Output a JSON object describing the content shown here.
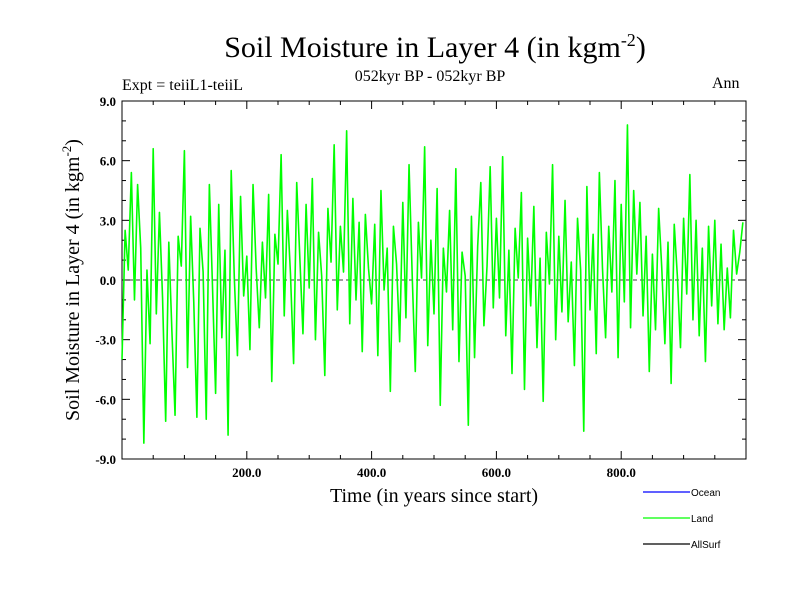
{
  "chart_data": {
    "type": "line",
    "title": "Soil Moisture in Layer 4 (in kgm",
    "title_sup": "-2",
    "title_end": ")",
    "subtitle": "052kyr BP - 052kyr BP",
    "expt_label": "Expt = teiiL1-teiiL",
    "season_label": "Ann",
    "xlabel": "Time (in years since start)",
    "ylabel": "Soil Moisture in Layer 4 (in kgm",
    "ylabel_sup": "-2",
    "ylabel_end": ")",
    "xlim": [
      0,
      1000
    ],
    "ylim": [
      -9,
      9
    ],
    "xticks": [
      200,
      400,
      600,
      800
    ],
    "xtick_labels": [
      "200.0",
      "400.0",
      "600.0",
      "800.0"
    ],
    "yticks": [
      -9,
      -6,
      -3,
      0,
      3,
      6,
      9
    ],
    "ytick_labels": [
      "-9.0",
      "-6.0",
      "-3.0",
      "0.0",
      "3.0",
      "6.0",
      "9.0"
    ],
    "zero_line": "dashed",
    "legend_position": "bottom-right",
    "series": [
      {
        "name": "Ocean",
        "color": "#0000ff",
        "values": []
      },
      {
        "name": "Land",
        "color": "#00ff00",
        "x_start": 0,
        "x_step": 5,
        "values": [
          -4.0,
          2.5,
          0.5,
          5.4,
          -1.0,
          4.8,
          1.6,
          -8.2,
          0.5,
          -3.2,
          6.6,
          -1.7,
          3.4,
          -0.9,
          -7.1,
          1.9,
          -2.6,
          -6.8,
          2.2,
          0.7,
          6.5,
          -4.4,
          3.2,
          -1.1,
          -6.9,
          2.6,
          0.4,
          -7.0,
          4.8,
          -0.3,
          -5.7,
          3.8,
          -2.9,
          1.5,
          -7.8,
          5.5,
          0.1,
          -3.8,
          4.2,
          -0.8,
          1.2,
          -3.5,
          4.8,
          0.6,
          -2.4,
          1.9,
          -0.9,
          4.3,
          -5.1,
          2.3,
          0.8,
          6.3,
          -1.8,
          3.5,
          0.3,
          -4.2,
          4.9,
          1.1,
          -2.7,
          3.8,
          -0.4,
          5.1,
          -3.0,
          2.4,
          0.2,
          -4.8,
          3.6,
          0.9,
          6.8,
          -1.5,
          2.7,
          0.4,
          7.5,
          -2.2,
          4.1,
          -1.0,
          2.9,
          -3.6,
          3.3,
          0.6,
          -1.2,
          2.8,
          -3.8,
          4.5,
          -0.5,
          1.6,
          -5.6,
          2.7,
          0.8,
          -3.1,
          3.9,
          -1.9,
          5.8,
          0.3,
          -4.6,
          2.9,
          0.1,
          6.7,
          -3.3,
          2.0,
          -1.7,
          4.6,
          -6.3,
          1.6,
          -0.6,
          3.5,
          -2.5,
          5.6,
          -4.1,
          1.4,
          0.2,
          -7.3,
          3.2,
          -3.9,
          1.7,
          4.9,
          -2.3,
          0.7,
          5.7,
          -1.4,
          3.1,
          -0.9,
          6.2,
          -2.8,
          1.5,
          -4.7,
          2.6,
          0.1,
          4.4,
          -5.5,
          2.1,
          -1.3,
          3.7,
          -3.4,
          1.1,
          -6.1,
          2.4,
          -0.2,
          5.8,
          -3.0,
          2.2,
          -1.6,
          4.0,
          -2.1,
          0.9,
          -4.3,
          3.1,
          0.5,
          -7.6,
          4.7,
          -1.5,
          2.3,
          -3.7,
          5.4,
          0.6,
          -2.9,
          2.7,
          -0.6,
          5.0,
          -3.9,
          3.8,
          -1.1,
          7.8,
          -2.4,
          4.5,
          0.3,
          3.9,
          -1.8,
          2.2,
          -4.6,
          1.3,
          -2.5,
          3.6,
          0.6,
          -3.2,
          1.9,
          -5.2,
          2.8,
          0.2,
          -3.4,
          3.1,
          -0.7,
          5.3,
          -2.0,
          3.0,
          -2.8,
          1.6,
          -4.1,
          2.7,
          -1.3,
          3.0,
          -2.2,
          1.8,
          -2.5,
          0.6,
          -1.9,
          2.5,
          0.3,
          1.4,
          2.9
        ]
      },
      {
        "name": "AllSurf",
        "color": "#000000",
        "values": []
      }
    ]
  }
}
